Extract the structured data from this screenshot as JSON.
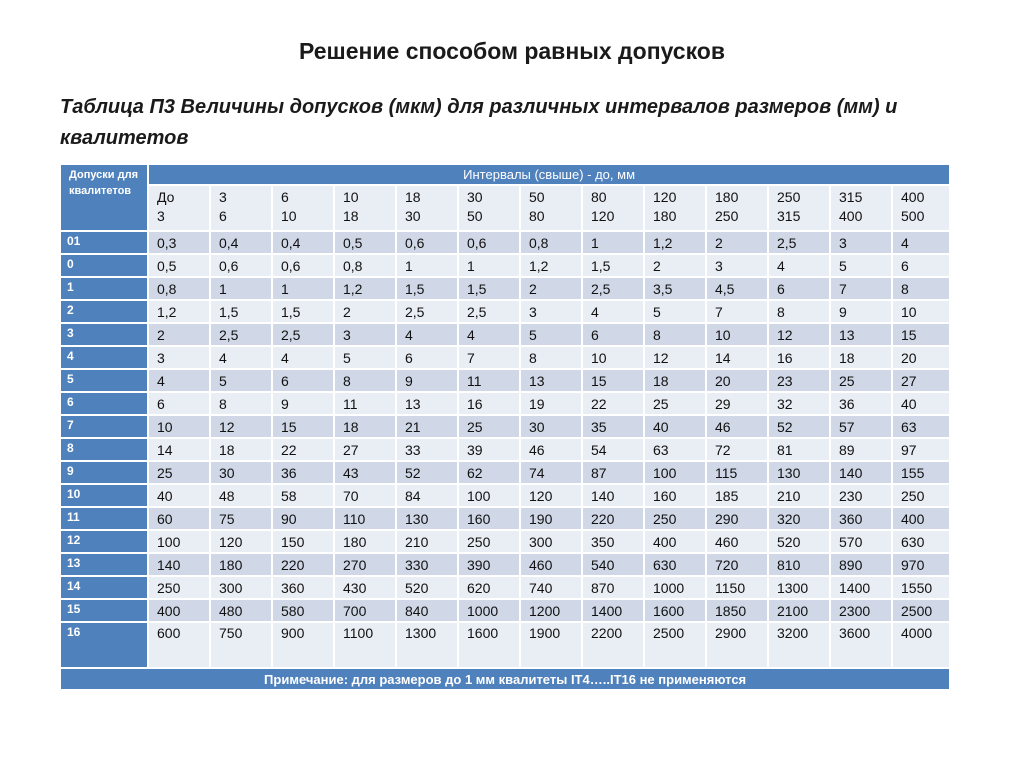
{
  "heading": "Решение способом равных допусков",
  "table_title": "Таблица П3 Величины допусков (мкм) для различных интервалов размеров (мм) и квалитетов",
  "corner_label": "Допуски для квалитетов",
  "intervals_header": "Интервалы (свыше) - до, мм",
  "intervals": [
    {
      "from": "До",
      "to": "3"
    },
    {
      "from": "3",
      "to": "6"
    },
    {
      "from": "6",
      "to": "10"
    },
    {
      "from": "10",
      "to": "18"
    },
    {
      "from": "18",
      "to": "30"
    },
    {
      "from": "30",
      "to": "50"
    },
    {
      "from": "50",
      "to": "80"
    },
    {
      "from": "80",
      "to": "120"
    },
    {
      "from": "120",
      "to": "180"
    },
    {
      "from": "180",
      "to": "250"
    },
    {
      "from": "250",
      "to": "315"
    },
    {
      "from": "315",
      "to": "400"
    },
    {
      "from": "400",
      "to": "500"
    }
  ],
  "rows": [
    {
      "grade": "01",
      "values": [
        "0,3",
        "0,4",
        "0,4",
        "0,5",
        "0,6",
        "0,6",
        "0,8",
        "1",
        "1,2",
        "2",
        "2,5",
        "3",
        "4"
      ]
    },
    {
      "grade": "0",
      "values": [
        "0,5",
        "0,6",
        "0,6",
        "0,8",
        "1",
        "1",
        "1,2",
        "1,5",
        "2",
        "3",
        "4",
        "5",
        "6"
      ]
    },
    {
      "grade": "1",
      "values": [
        "0,8",
        "1",
        "1",
        "1,2",
        "1,5",
        "1,5",
        "2",
        "2,5",
        "3,5",
        "4,5",
        "6",
        "7",
        "8"
      ]
    },
    {
      "grade": "2",
      "values": [
        "1,2",
        "1,5",
        "1,5",
        "2",
        "2,5",
        "2,5",
        "3",
        "4",
        "5",
        "7",
        "8",
        "9",
        "10"
      ]
    },
    {
      "grade": "3",
      "values": [
        "2",
        "2,5",
        "2,5",
        "3",
        "4",
        "4",
        "5",
        "6",
        "8",
        "10",
        "12",
        "13",
        "15"
      ]
    },
    {
      "grade": "4",
      "values": [
        "3",
        "4",
        "4",
        "5",
        "6",
        "7",
        "8",
        "10",
        "12",
        "14",
        "16",
        "18",
        "20"
      ]
    },
    {
      "grade": "5",
      "values": [
        "4",
        "5",
        "6",
        "8",
        "9",
        "11",
        "13",
        "15",
        "18",
        "20",
        "23",
        "25",
        "27"
      ]
    },
    {
      "grade": "6",
      "values": [
        "6",
        "8",
        "9",
        "11",
        "13",
        "16",
        "19",
        "22",
        "25",
        "29",
        "32",
        "36",
        "40"
      ]
    },
    {
      "grade": "7",
      "values": [
        "10",
        "12",
        "15",
        "18",
        "21",
        "25",
        "30",
        "35",
        "40",
        "46",
        "52",
        "57",
        "63"
      ]
    },
    {
      "grade": "8",
      "values": [
        "14",
        "18",
        "22",
        "27",
        "33",
        "39",
        "46",
        "54",
        "63",
        "72",
        "81",
        "89",
        "97"
      ]
    },
    {
      "grade": "9",
      "values": [
        "25",
        "30",
        "36",
        "43",
        "52",
        "62",
        "74",
        "87",
        "100",
        "115",
        "130",
        "140",
        "155"
      ]
    },
    {
      "grade": "10",
      "values": [
        "40",
        "48",
        "58",
        "70",
        "84",
        "100",
        "120",
        "140",
        "160",
        "185",
        "210",
        "230",
        "250"
      ]
    },
    {
      "grade": "11",
      "values": [
        "60",
        "75",
        "90",
        "110",
        "130",
        "160",
        "190",
        "220",
        "250",
        "290",
        "320",
        "360",
        "400"
      ]
    },
    {
      "grade": "12",
      "values": [
        "100",
        "120",
        "150",
        "180",
        "210",
        "250",
        "300",
        "350",
        "400",
        "460",
        "520",
        "570",
        "630"
      ]
    },
    {
      "grade": "13",
      "values": [
        "140",
        "180",
        "220",
        "270",
        "330",
        "390",
        "460",
        "540",
        "630",
        "720",
        "810",
        "890",
        "970"
      ]
    },
    {
      "grade": "14",
      "values": [
        "250",
        "300",
        "360",
        "430",
        "520",
        "620",
        "740",
        "870",
        "1000",
        "1150",
        "1300",
        "1400",
        "1550"
      ]
    },
    {
      "grade": "15",
      "values": [
        "400",
        "480",
        "580",
        "700",
        "840",
        "1000",
        "1200",
        "1400",
        "1600",
        "1850",
        "2100",
        "2300",
        "2500"
      ]
    },
    {
      "grade": "16",
      "values": [
        "600",
        "750",
        "900",
        "1100",
        "1300",
        "1600",
        "1900",
        "2200",
        "2500",
        "2900",
        "3200",
        "3600",
        "4000"
      ]
    }
  ],
  "note": "Примечание: для размеров до 1 мм квалитеты IT4…..IT16 не применяются"
}
